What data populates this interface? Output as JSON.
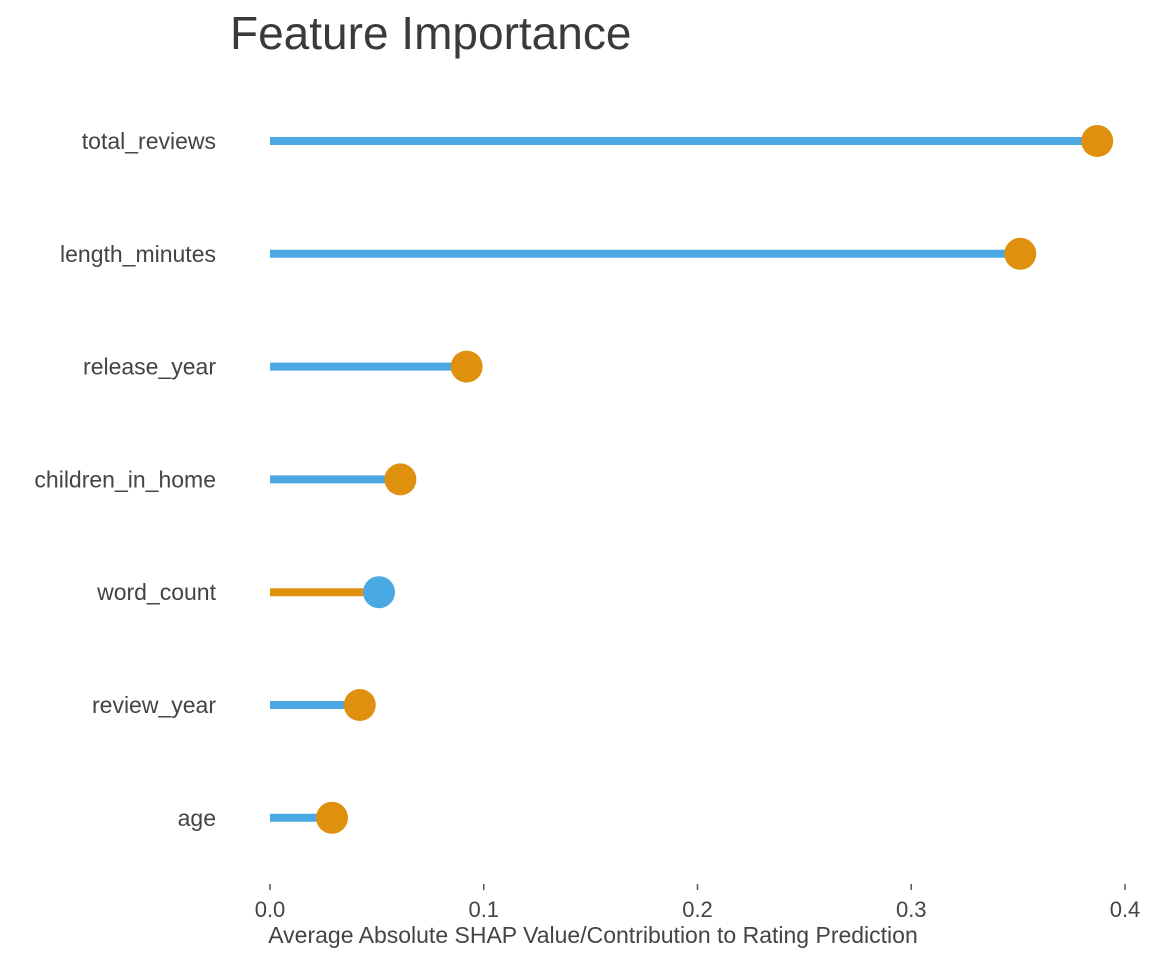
{
  "chart_data": {
    "type": "lollipop",
    "title": "Feature Importance",
    "xlabel": "Average Absolute SHAP Value/Contribution to Rating Prediction",
    "ylabel": "",
    "xlim": [
      0.0,
      0.4
    ],
    "xticks": [
      "0.0",
      "0.1",
      "0.2",
      "0.3",
      "0.4"
    ],
    "xtick_values": [
      0.0,
      0.1,
      0.2,
      0.3,
      0.4
    ],
    "grid": false,
    "categories": [
      "total_reviews",
      "length_minutes",
      "release_year",
      "children_in_home",
      "word_count",
      "review_year",
      "age"
    ],
    "values": [
      0.387,
      0.351,
      0.092,
      0.061,
      0.051,
      0.042,
      0.029
    ],
    "colors": {
      "blue": "#4aa8e2",
      "orange": "#e0900f",
      "text": "#444444"
    },
    "highlighted_category": "word_count"
  }
}
